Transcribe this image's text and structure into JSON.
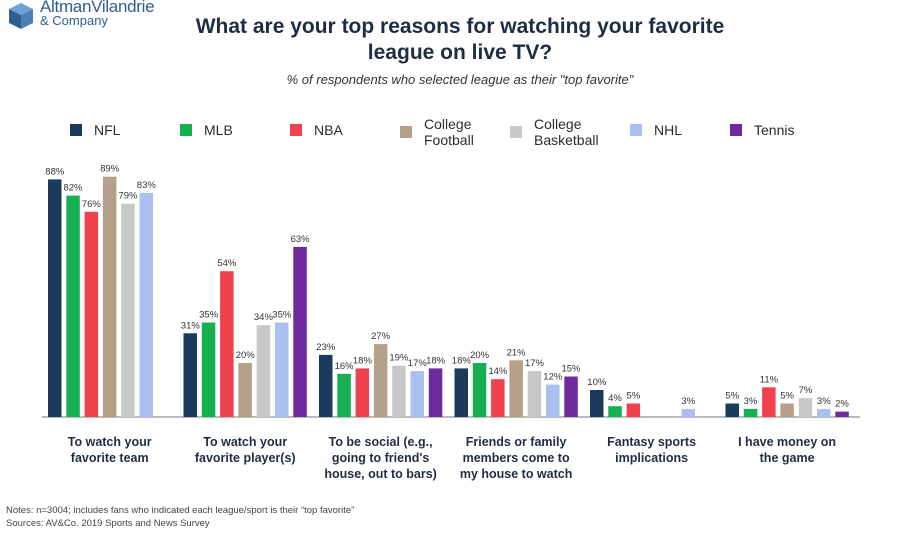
{
  "logo": {
    "line1": "AltmanVilandrie",
    "line2": "& Company"
  },
  "notes": "Notes: n=3004; includes fans who indicated each league/sport is their “top favorite”",
  "sources": "Sources: AV&Co. 2019 Sports and News Survey",
  "chart_data": {
    "type": "bar",
    "title": "What are your top reasons for watching your favorite league on live TV?",
    "subtitle": "% of respondents who selected league as their \"top favorite\"",
    "legend_position": "top",
    "grid": false,
    "ylim": [
      0,
      100
    ],
    "value_suffix": "%",
    "categories": [
      "To watch your favorite team",
      "To watch your favorite player(s)",
      "To be social (e.g., going to friend's house, out to bars)",
      "Friends or family members come to my house to watch",
      "Fantasy sports implications",
      "I have money on the game"
    ],
    "category_lines": [
      [
        "To watch your",
        "favorite team"
      ],
      [
        "To watch your",
        "favorite player(s)"
      ],
      [
        "To be social (e.g.,",
        "going to friend's",
        "house, out to bars)"
      ],
      [
        "Friends or family",
        "members come to",
        "my house to watch"
      ],
      [
        "Fantasy sports",
        "implications"
      ],
      [
        "I have money on",
        "the game"
      ]
    ],
    "series": [
      {
        "name": "NFL",
        "color": "#1b3a5c",
        "values": [
          88,
          31,
          23,
          18,
          10,
          5
        ]
      },
      {
        "name": "MLB",
        "color": "#17b050",
        "values": [
          82,
          35,
          16,
          20,
          4,
          3
        ]
      },
      {
        "name": "NBA",
        "color": "#f0414f",
        "values": [
          76,
          54,
          18,
          14,
          5,
          11
        ]
      },
      {
        "name": "College Football",
        "color": "#b5a08a",
        "values": [
          89,
          20,
          27,
          21,
          null,
          5
        ]
      },
      {
        "name": "College Basketball",
        "color": "#c8c8c8",
        "values": [
          79,
          34,
          19,
          17,
          null,
          7
        ]
      },
      {
        "name": "NHL",
        "color": "#a9c0f0",
        "values": [
          83,
          35,
          17,
          12,
          3,
          3
        ]
      },
      {
        "name": "Tennis",
        "color": "#6f2a9e",
        "values": [
          null,
          63,
          18,
          15,
          null,
          2
        ]
      }
    ]
  }
}
